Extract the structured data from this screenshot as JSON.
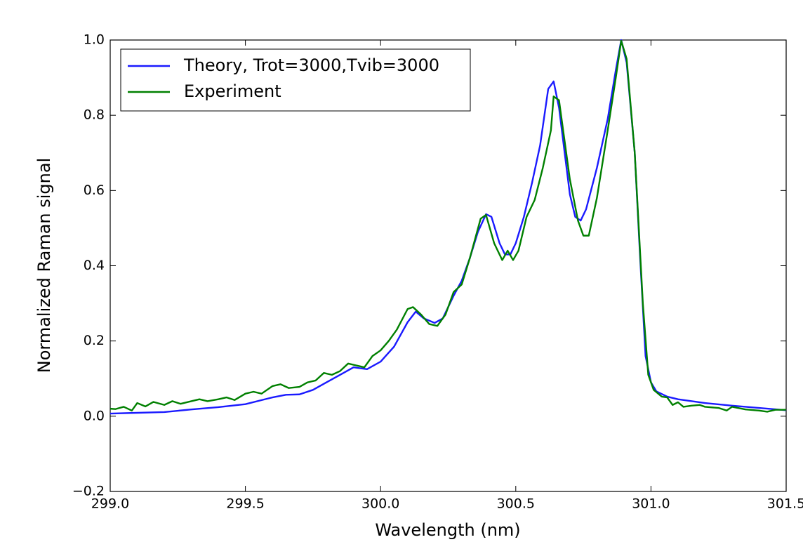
{
  "chart_data": {
    "type": "line",
    "xlabel": "Wavelength (nm)",
    "ylabel": "Normalized Raman signal",
    "xlim": [
      299.0,
      301.5
    ],
    "xticks": [
      {
        "value": 299.0,
        "label": "299.0"
      },
      299.5,
      {
        "value": 300.0,
        "label": "300.0"
      },
      300.5,
      {
        "value": 301.0,
        "label": "301.0"
      },
      301.5
    ],
    "ylim": [
      -0.2,
      1.0
    ],
    "yticks": [
      {
        "value": -0.2,
        "label": "−0.2"
      },
      {
        "value": 0.0,
        "label": "0.0"
      },
      0.2,
      0.4,
      0.6,
      0.8,
      {
        "value": 1.0,
        "label": "1.0"
      }
    ],
    "legend": "upper left",
    "series": [
      {
        "name": "Theory, Trot=3000,Tvib=3000",
        "color": "#1a1aff",
        "x": [
          299.0,
          299.1,
          299.2,
          299.3,
          299.4,
          299.5,
          299.6,
          299.65,
          299.7,
          299.75,
          299.8,
          299.85,
          299.9,
          299.95,
          300.0,
          300.05,
          300.1,
          300.13,
          300.16,
          300.2,
          300.23,
          300.27,
          300.3,
          300.33,
          300.36,
          300.39,
          300.41,
          300.44,
          300.46,
          300.48,
          300.5,
          300.53,
          300.56,
          300.59,
          300.62,
          300.64,
          300.66,
          300.7,
          300.72,
          300.74,
          300.76,
          300.8,
          300.84,
          300.87,
          300.89,
          300.91,
          300.94,
          300.96,
          300.98,
          301.0,
          301.02,
          301.06,
          301.1,
          301.2,
          301.3,
          301.4,
          301.5
        ],
        "values": [
          0.007,
          0.009,
          0.011,
          0.018,
          0.024,
          0.032,
          0.05,
          0.057,
          0.058,
          0.07,
          0.09,
          0.11,
          0.13,
          0.125,
          0.145,
          0.185,
          0.25,
          0.278,
          0.26,
          0.248,
          0.26,
          0.32,
          0.36,
          0.42,
          0.49,
          0.537,
          0.53,
          0.46,
          0.43,
          0.43,
          0.46,
          0.53,
          0.62,
          0.72,
          0.87,
          0.89,
          0.82,
          0.59,
          0.53,
          0.52,
          0.55,
          0.66,
          0.79,
          0.92,
          1.0,
          0.94,
          0.7,
          0.42,
          0.16,
          0.09,
          0.066,
          0.052,
          0.045,
          0.035,
          0.028,
          0.022,
          0.016
        ]
      },
      {
        "name": "Experiment",
        "color": "#008000",
        "x": [
          299.0,
          299.02,
          299.05,
          299.08,
          299.1,
          299.13,
          299.16,
          299.2,
          299.23,
          299.26,
          299.3,
          299.33,
          299.36,
          299.4,
          299.43,
          299.46,
          299.5,
          299.53,
          299.56,
          299.6,
          299.63,
          299.66,
          299.7,
          299.73,
          299.76,
          299.79,
          299.82,
          299.85,
          299.88,
          299.91,
          299.94,
          299.97,
          300.0,
          300.03,
          300.06,
          300.1,
          300.12,
          300.15,
          300.18,
          300.21,
          300.24,
          300.27,
          300.3,
          300.33,
          300.37,
          300.39,
          300.42,
          300.45,
          300.47,
          300.49,
          300.51,
          300.54,
          300.57,
          300.6,
          300.63,
          300.64,
          300.66,
          300.7,
          300.73,
          300.75,
          300.77,
          300.8,
          300.84,
          300.87,
          300.89,
          300.91,
          300.94,
          300.97,
          300.99,
          301.01,
          301.04,
          301.06,
          301.08,
          301.1,
          301.12,
          301.15,
          301.18,
          301.2,
          301.25,
          301.28,
          301.3,
          301.35,
          301.4,
          301.43,
          301.46,
          301.5
        ],
        "values": [
          0.02,
          0.019,
          0.025,
          0.015,
          0.035,
          0.026,
          0.038,
          0.03,
          0.04,
          0.033,
          0.04,
          0.045,
          0.04,
          0.045,
          0.05,
          0.043,
          0.06,
          0.065,
          0.06,
          0.08,
          0.085,
          0.075,
          0.078,
          0.09,
          0.095,
          0.115,
          0.11,
          0.12,
          0.14,
          0.135,
          0.13,
          0.16,
          0.175,
          0.2,
          0.23,
          0.285,
          0.29,
          0.27,
          0.245,
          0.24,
          0.27,
          0.33,
          0.35,
          0.42,
          0.525,
          0.535,
          0.46,
          0.415,
          0.44,
          0.415,
          0.44,
          0.53,
          0.575,
          0.66,
          0.76,
          0.85,
          0.84,
          0.63,
          0.52,
          0.48,
          0.48,
          0.58,
          0.76,
          0.9,
          0.998,
          0.95,
          0.7,
          0.3,
          0.11,
          0.07,
          0.052,
          0.05,
          0.03,
          0.037,
          0.025,
          0.028,
          0.03,
          0.025,
          0.022,
          0.015,
          0.025,
          0.018,
          0.015,
          0.012,
          0.017,
          0.017
        ]
      }
    ]
  }
}
